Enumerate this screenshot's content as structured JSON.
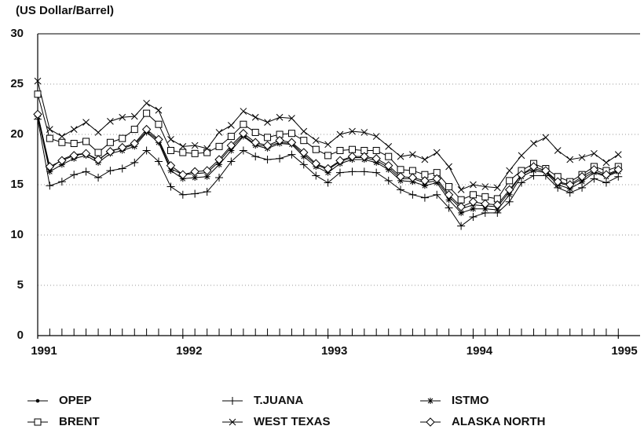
{
  "chart_data": {
    "type": "line",
    "ylabel": "(US Dollar/Barrel)",
    "x": [
      1991,
      1991.083,
      1991.167,
      1991.25,
      1991.333,
      1991.417,
      1991.5,
      1991.583,
      1991.667,
      1991.75,
      1991.833,
      1991.917,
      1992,
      1992.083,
      1992.167,
      1992.25,
      1992.333,
      1992.417,
      1992.5,
      1992.583,
      1992.667,
      1992.75,
      1992.833,
      1992.917,
      1993,
      1993.083,
      1993.167,
      1993.25,
      1993.333,
      1993.417,
      1993.5,
      1993.583,
      1993.667,
      1993.75,
      1993.833,
      1993.917,
      1994,
      1994.083,
      1994.167,
      1994.25,
      1994.333,
      1994.417,
      1994.5,
      1994.583,
      1994.667,
      1994.75,
      1994.833,
      1994.917,
      1995
    ],
    "xlim": [
      1991,
      1995.15
    ],
    "xticks": [
      1991,
      1992,
      1993,
      1994,
      1995
    ],
    "ylim": [
      0,
      30
    ],
    "yticks": [
      0,
      5,
      10,
      15,
      20,
      25,
      30
    ],
    "grid": true,
    "series": [
      {
        "name": "OPEP",
        "color": "#000000",
        "marker": "dot",
        "values": [
          22.0,
          16.6,
          17.5,
          18.0,
          18.1,
          17.4,
          18.4,
          18.6,
          19.0,
          20.3,
          19.4,
          16.6,
          16.0,
          16.1,
          16.2,
          17.3,
          18.7,
          19.9,
          19.0,
          18.8,
          19.2,
          19.1,
          18.0,
          17.0,
          16.5,
          17.3,
          17.7,
          17.7,
          17.4,
          16.7,
          15.6,
          15.6,
          15.2,
          15.4,
          13.8,
          12.6,
          13.0,
          12.9,
          12.8,
          14.3,
          16.0,
          16.6,
          16.3,
          15.2,
          14.9,
          15.6,
          16.3,
          15.9,
          16.4
        ]
      },
      {
        "name": "T.JUANA",
        "color": "#000000",
        "marker": "plus",
        "values": [
          21.5,
          14.9,
          15.3,
          16.0,
          16.3,
          15.7,
          16.4,
          16.6,
          17.2,
          18.4,
          17.3,
          14.8,
          14.0,
          14.1,
          14.3,
          15.7,
          17.3,
          18.4,
          17.8,
          17.5,
          17.6,
          18.0,
          17.0,
          15.9,
          15.2,
          16.2,
          16.3,
          16.3,
          16.2,
          15.4,
          14.5,
          14.0,
          13.7,
          14.0,
          12.7,
          10.9,
          11.8,
          12.2,
          12.2,
          13.3,
          15.2,
          15.9,
          15.9,
          14.7,
          14.2,
          14.7,
          15.6,
          15.2,
          15.8
        ]
      },
      {
        "name": "ISTMO",
        "color": "#000000",
        "marker": "asterisk",
        "values": [
          21.8,
          16.3,
          17.0,
          17.6,
          17.9,
          17.2,
          18.1,
          18.4,
          18.8,
          20.2,
          19.2,
          16.4,
          15.6,
          15.7,
          15.8,
          17.0,
          18.4,
          19.8,
          18.9,
          18.6,
          19.1,
          19.0,
          17.8,
          16.8,
          16.2,
          17.1,
          17.5,
          17.5,
          17.2,
          16.5,
          15.4,
          15.3,
          14.9,
          15.2,
          13.5,
          12.2,
          12.6,
          12.6,
          12.5,
          14.0,
          15.8,
          16.4,
          16.2,
          15.0,
          14.6,
          15.3,
          16.2,
          15.8,
          16.3
        ]
      },
      {
        "name": "BRENT",
        "color": "#000000",
        "marker": "square",
        "values": [
          24.0,
          19.6,
          19.2,
          19.1,
          19.3,
          18.2,
          19.2,
          19.6,
          20.5,
          22.1,
          21.0,
          18.4,
          18.2,
          18.1,
          18.2,
          18.8,
          19.8,
          21.0,
          20.2,
          19.7,
          20.0,
          20.1,
          19.4,
          18.5,
          17.9,
          18.4,
          18.5,
          18.4,
          18.4,
          17.8,
          16.5,
          16.4,
          16.0,
          16.2,
          14.8,
          13.5,
          14.0,
          13.8,
          13.6,
          15.4,
          16.4,
          17.1,
          16.6,
          15.8,
          15.3,
          16.0,
          16.8,
          16.4,
          16.8
        ]
      },
      {
        "name": "WEST TEXAS",
        "color": "#000000",
        "marker": "cross",
        "values": [
          25.3,
          20.5,
          19.8,
          20.5,
          21.2,
          20.2,
          21.3,
          21.7,
          21.8,
          23.1,
          22.4,
          19.5,
          18.8,
          18.9,
          18.6,
          20.2,
          20.9,
          22.3,
          21.7,
          21.2,
          21.7,
          21.6,
          20.3,
          19.4,
          19.0,
          20.0,
          20.3,
          20.2,
          19.8,
          18.8,
          17.8,
          18.0,
          17.5,
          18.2,
          16.8,
          14.5,
          15.0,
          14.8,
          14.7,
          16.4,
          17.9,
          19.1,
          19.7,
          18.4,
          17.5,
          17.7,
          18.1,
          17.2,
          18.0
        ]
      },
      {
        "name": "ALASKA NORTH",
        "color": "#000000",
        "marker": "diamond",
        "values": [
          22.0,
          16.8,
          17.4,
          17.9,
          18.1,
          17.5,
          18.3,
          18.7,
          19.1,
          20.5,
          19.5,
          16.9,
          16.0,
          16.3,
          16.4,
          17.5,
          18.9,
          20.1,
          19.2,
          18.9,
          19.4,
          19.2,
          18.2,
          17.1,
          16.6,
          17.4,
          17.8,
          17.8,
          17.6,
          16.9,
          15.8,
          15.7,
          15.4,
          15.6,
          14.0,
          12.8,
          13.3,
          13.1,
          13.0,
          14.5,
          16.0,
          16.8,
          16.4,
          15.3,
          15.0,
          15.8,
          16.5,
          16.0,
          16.5
        ]
      }
    ]
  }
}
